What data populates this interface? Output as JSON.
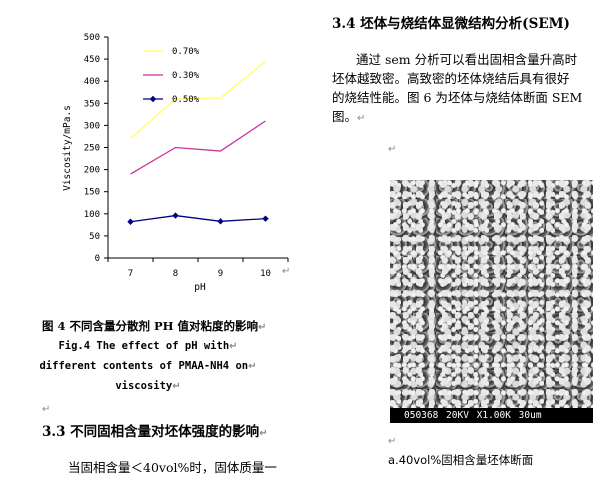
{
  "chart_data": {
    "type": "line",
    "xlabel": "pH",
    "ylabel": "Viscosity/mPa.s",
    "x": [
      7,
      8,
      9,
      10
    ],
    "ylim": [
      0,
      500
    ],
    "yticks": [
      0,
      50,
      100,
      150,
      200,
      250,
      300,
      350,
      400,
      450,
      500
    ],
    "legend_position": "top-left",
    "grid": false,
    "series": [
      {
        "name": "0.70%",
        "values": [
          270,
          360,
          362,
          445
        ],
        "color": "#ffff66",
        "marker": "none"
      },
      {
        "name": "0.30%",
        "values": [
          190,
          250,
          242,
          310
        ],
        "color": "#cc3399",
        "marker": "none"
      },
      {
        "name": "0.50%",
        "values": [
          82,
          96,
          83,
          89
        ],
        "color": "#000080",
        "marker": "diamond"
      }
    ]
  },
  "figure4": {
    "caption_cn": "图 4 不同含量分散剂 PH 值对粘度的影响",
    "caption_en_1": "Fig.4 The effect of pH with",
    "caption_en_2": "different contents of PMAA-NH4 on",
    "caption_en_3": "viscosity"
  },
  "section33": {
    "heading": "3.3 不同固相含量对坯体强度的影响",
    "text": "当固相含量＜40vol%时，固体质量一"
  },
  "section34": {
    "heading": "3.4 坯体与烧结体显微结构分析(SEM)",
    "para_1": "通过 sem 分析可以看出固相含量升高时",
    "para_2": "坯体越致密。高致密的坯体烧结后具有很好",
    "para_3": "的烧结性能。图 6 为坯体与烧结体断面 SEM",
    "para_4": "图。"
  },
  "figure6": {
    "sem_info": "050368 20KV X1.00K 30um",
    "caption_a": "a.40vol%固相含量坯体断面"
  },
  "paragraph_mark": "↵"
}
